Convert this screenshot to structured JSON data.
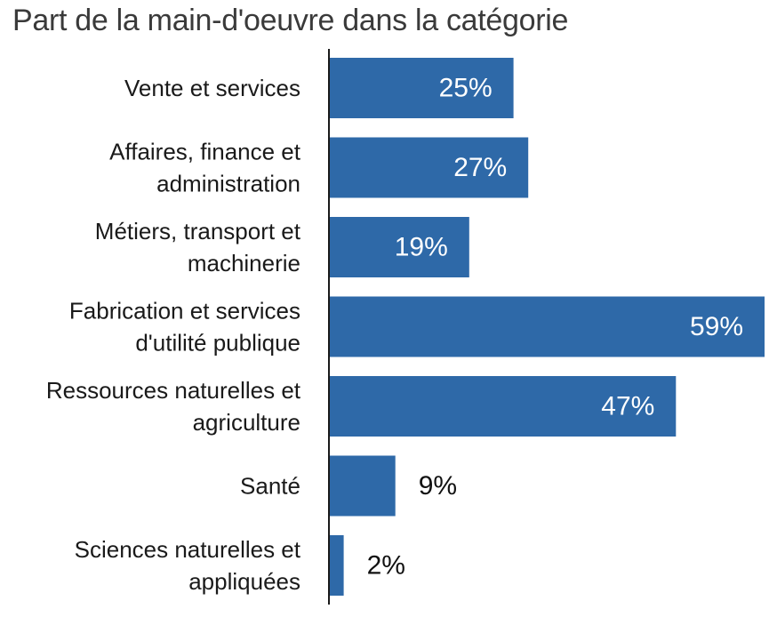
{
  "chart_data": {
    "type": "bar",
    "orientation": "horizontal",
    "title": "Part de la main-d'oeuvre dans la catégorie",
    "categories": [
      [
        "Vente et services"
      ],
      [
        "Affaires, finance et",
        "administration"
      ],
      [
        "Métiers, transport et",
        "machinerie"
      ],
      [
        "Fabrication et services",
        "d'utilité publique"
      ],
      [
        "Ressources naturelles et",
        "agriculture"
      ],
      [
        "Santé"
      ],
      [
        "Sciences naturelles et",
        "appliquées"
      ]
    ],
    "values": [
      25,
      27,
      19,
      59,
      47,
      9,
      2
    ],
    "value_labels": [
      "25%",
      "27%",
      "19%",
      "59%",
      "47%",
      "9%",
      "2%"
    ],
    "unit": "%",
    "xlim": [
      0,
      60
    ],
    "bar_color": "#2e69a8",
    "label_inside_color": "#ffffff",
    "label_outside_color": "#111111",
    "axis_color": "#1a1a1a",
    "grid": false,
    "legend": "none"
  }
}
